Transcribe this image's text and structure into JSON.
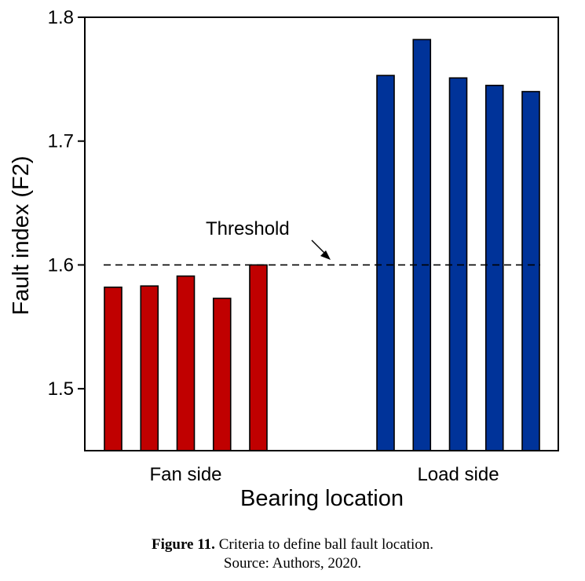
{
  "chart_data": {
    "type": "bar",
    "xlabel": "Bearing location",
    "ylabel": "Fault index (F2)",
    "ylim": [
      1.45,
      1.8
    ],
    "yticks": [
      1.5,
      1.6,
      1.7,
      1.8
    ],
    "ytick_labels": [
      "1.5",
      "1.6",
      "1.7",
      "1.8"
    ],
    "groups": [
      {
        "label": "Fan side",
        "color": "#c00000",
        "values": [
          1.582,
          1.583,
          1.591,
          1.573,
          1.6
        ]
      },
      {
        "label": "Load side",
        "color": "#003399",
        "values": [
          1.753,
          1.782,
          1.751,
          1.745,
          1.74
        ]
      }
    ],
    "threshold": {
      "value": 1.6,
      "label": "Threshold",
      "style": "dashed"
    },
    "grid": false
  },
  "caption": {
    "figure_label": "Figure 11.",
    "text": " Criteria to define ball fault location.",
    "source": "Source: Authors, 2020."
  }
}
